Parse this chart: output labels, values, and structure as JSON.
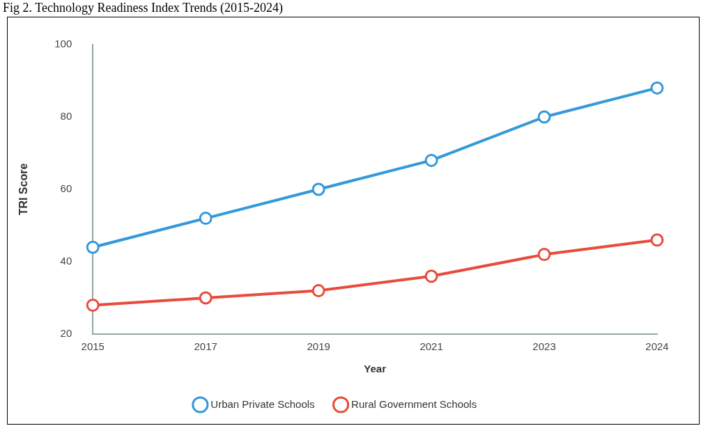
{
  "chart_data": {
    "type": "line",
    "title": "Fig 2. Technology Readiness Index Trends (2015-2024)",
    "xlabel": "Year",
    "ylabel": "TRI Score",
    "categories": [
      "2015",
      "2017",
      "2019",
      "2021",
      "2023",
      "2024"
    ],
    "series": [
      {
        "name": "Urban Private Schools",
        "color": "#3498db",
        "values": [
          44,
          52,
          60,
          68,
          80,
          88
        ]
      },
      {
        "name": "Rural Government Schools",
        "color": "#e74c3c",
        "values": [
          28,
          30,
          32,
          36,
          42,
          46
        ]
      }
    ],
    "ylim": [
      20,
      100
    ],
    "yticks": [
      20,
      40,
      60,
      80,
      100
    ],
    "grid": false,
    "legend": "bottom",
    "marker": "circle",
    "line_style": "solid"
  }
}
